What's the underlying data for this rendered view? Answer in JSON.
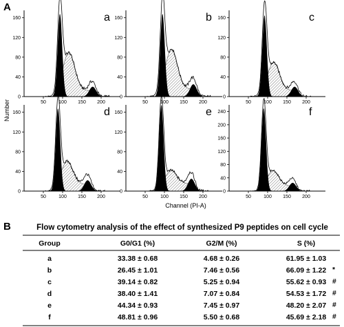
{
  "panel_labels": {
    "a": "A",
    "b": "B"
  },
  "chart_data": [
    {
      "type": "area",
      "title": "a",
      "xlabel": "Channel (PI-A)",
      "ylabel": "Number",
      "xlim": [
        0,
        250
      ],
      "ylim": [
        0,
        175
      ],
      "x_ticks": [
        50,
        100,
        150,
        200
      ],
      "y_ticks": [
        0,
        40,
        80,
        120,
        160
      ],
      "peaks": {
        "g1": 93,
        "g2": 178
      },
      "fractions": {
        "G0/G1": 33.38,
        "G2/M": 4.68,
        "S": 61.95
      },
      "ylevels": {
        "g1_peak": 168,
        "s_plateau": 80,
        "g2_peak": 20
      }
    },
    {
      "type": "area",
      "title": "b",
      "xlabel": "Channel (PI-A)",
      "ylabel": "Number",
      "xlim": [
        0,
        250
      ],
      "ylim": [
        0,
        175
      ],
      "x_ticks": [
        50,
        100,
        150,
        200
      ],
      "y_ticks": [
        0,
        40,
        80,
        120,
        160
      ],
      "peaks": {
        "g1": 95,
        "g2": 175
      },
      "fractions": {
        "G0/G1": 26.45,
        "G2/M": 7.46,
        "S": 66.09
      },
      "ylevels": {
        "g1_peak": 168,
        "s_plateau": 85,
        "g2_peak": 25
      }
    },
    {
      "type": "area",
      "title": "c",
      "xlabel": "Channel (PI-A)",
      "ylabel": "Number",
      "xlim": [
        0,
        250
      ],
      "ylim": [
        0,
        175
      ],
      "x_ticks": [
        50,
        100,
        150,
        200
      ],
      "y_ticks": [
        0,
        40,
        80,
        120,
        160
      ],
      "peaks": {
        "g1": 92,
        "g2": 170
      },
      "fractions": {
        "G0/G1": 39.14,
        "G2/M": 5.25,
        "S": 55.62
      },
      "ylevels": {
        "g1_peak": 165,
        "s_plateau": 60,
        "g2_peak": 20
      }
    },
    {
      "type": "area",
      "title": "d",
      "xlabel": "Channel (PI-A)",
      "ylabel": "Number",
      "xlim": [
        0,
        250
      ],
      "ylim": [
        0,
        175
      ],
      "x_ticks": [
        50,
        100,
        150,
        200
      ],
      "y_ticks": [
        0,
        40,
        80,
        120,
        160
      ],
      "peaks": {
        "g1": 88,
        "g2": 165
      },
      "fractions": {
        "G0/G1": 38.4,
        "G2/M": 7.07,
        "S": 54.53
      },
      "ylevels": {
        "g1_peak": 168,
        "s_plateau": 50,
        "g2_peak": 22
      }
    },
    {
      "type": "area",
      "title": "e",
      "xlabel": "Channel (PI-A)",
      "ylabel": "Number",
      "xlim": [
        0,
        250
      ],
      "ylim": [
        0,
        175
      ],
      "x_ticks": [
        50,
        100,
        150,
        200
      ],
      "y_ticks": [
        0,
        40,
        80,
        120,
        160
      ],
      "peaks": {
        "g1": 92,
        "g2": 170
      },
      "fractions": {
        "G0/G1": 44.34,
        "G2/M": 7.45,
        "S": 48.2
      },
      "ylevels": {
        "g1_peak": 175,
        "s_plateau": 30,
        "g2_peak": 25
      }
    },
    {
      "type": "area",
      "title": "f",
      "xlabel": "Channel (PI-A)",
      "ylabel": "Number",
      "xlim": [
        0,
        250
      ],
      "ylim": [
        0,
        260
      ],
      "x_ticks": [
        50,
        100,
        150,
        200
      ],
      "y_ticks": [
        0,
        40,
        80,
        120,
        160,
        200,
        240
      ],
      "peaks": {
        "g1": 90,
        "g2": 165
      },
      "fractions": {
        "G0/G1": 48.81,
        "G2/M": 5.5,
        "S": 45.69
      },
      "ylevels": {
        "g1_peak": 250,
        "s_plateau": 50,
        "g2_peak": 25
      }
    },
    {
      "type": "table",
      "title": "Flow cytometry analysis of the effect of synthesized P9 peptides on cell cycle",
      "columns": [
        "Group",
        "G0/G1 (%)",
        "G2/M (%)",
        "S (%)"
      ],
      "rows": [
        [
          "a",
          "33.38 ± 0.68",
          "4.68 ± 0.26",
          "61.95 ± 1.03"
        ],
        [
          "b",
          "26.45 ± 1.01",
          "7.46 ± 0.56",
          "66.09 ± 1.22"
        ],
        [
          "c",
          "39.14 ± 0.82",
          "5.25 ± 0.94",
          "55.62 ± 0.93"
        ],
        [
          "d",
          "38.40 ± 1.41",
          "7.07 ± 0.84",
          "54.53 ± 1.72"
        ],
        [
          "e",
          "44.34 ± 0.93",
          "7.45 ± 0.97",
          "48.20 ± 2.07"
        ],
        [
          "f",
          "48.81 ± 0.96",
          "5.50 ± 0.68",
          "45.69 ± 2.18"
        ]
      ],
      "marks": [
        "",
        "*",
        "#",
        "#",
        "#",
        "#"
      ]
    }
  ]
}
